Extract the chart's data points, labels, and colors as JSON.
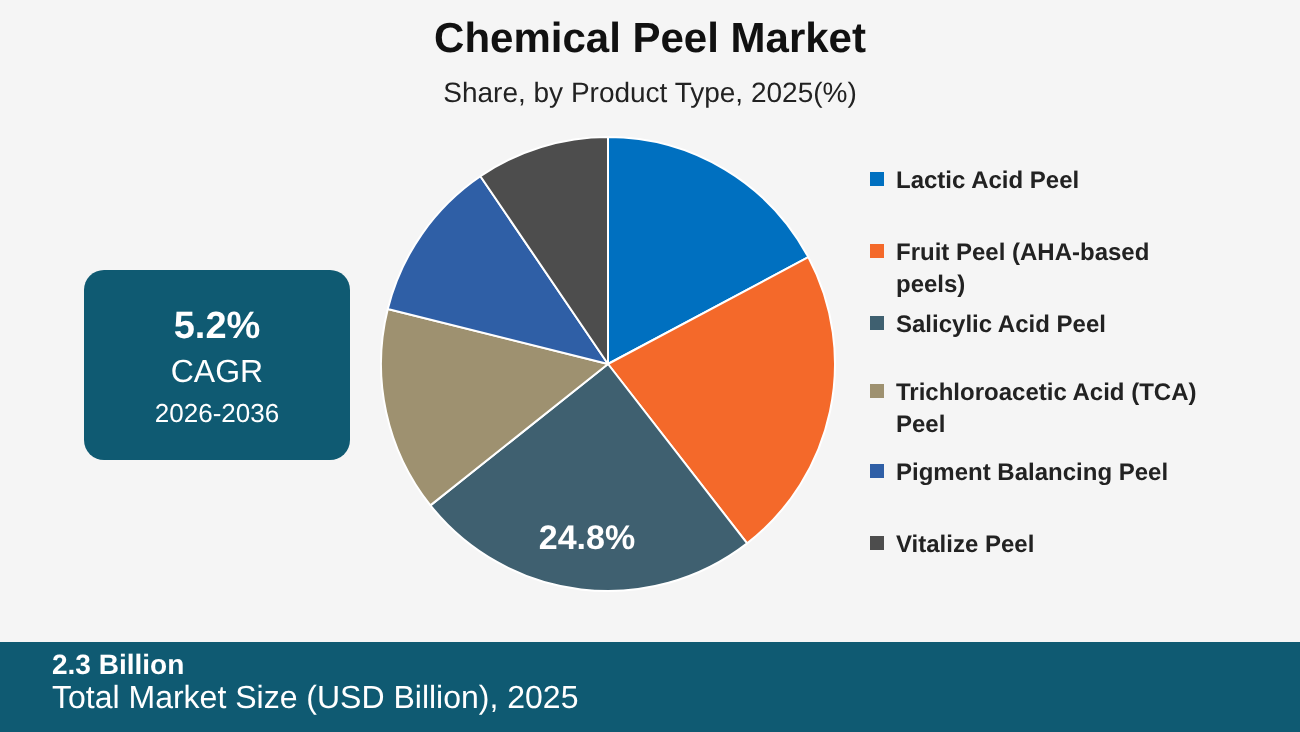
{
  "chart_data": {
    "type": "pie",
    "title": "Chemical Peel Market",
    "subtitle": "Share, by Product Type, 2025(%)",
    "categories": [
      "Lactic Acid Peel",
      "Fruit Peel (AHA-based peels)",
      "Salicylic Acid Peel",
      "Trichloroacetic Acid (TCA) Peel",
      "Pigment Balancing Peel",
      "Vitalize Peel"
    ],
    "values": [
      17.2,
      22.3,
      24.8,
      14.6,
      11.6,
      9.5
    ],
    "colors": [
      "#0070c0",
      "#f4692a",
      "#3f6070",
      "#9e9170",
      "#2f5fa6",
      "#4d4d4d"
    ],
    "value_labels": [
      null,
      null,
      "24.8%",
      null,
      null,
      null
    ],
    "legend": "right",
    "annotations": [
      "5.2%",
      "CAGR",
      "2026-2036",
      "2.3 Billion",
      "Total Market Size (USD Billion), 2025"
    ]
  }
}
